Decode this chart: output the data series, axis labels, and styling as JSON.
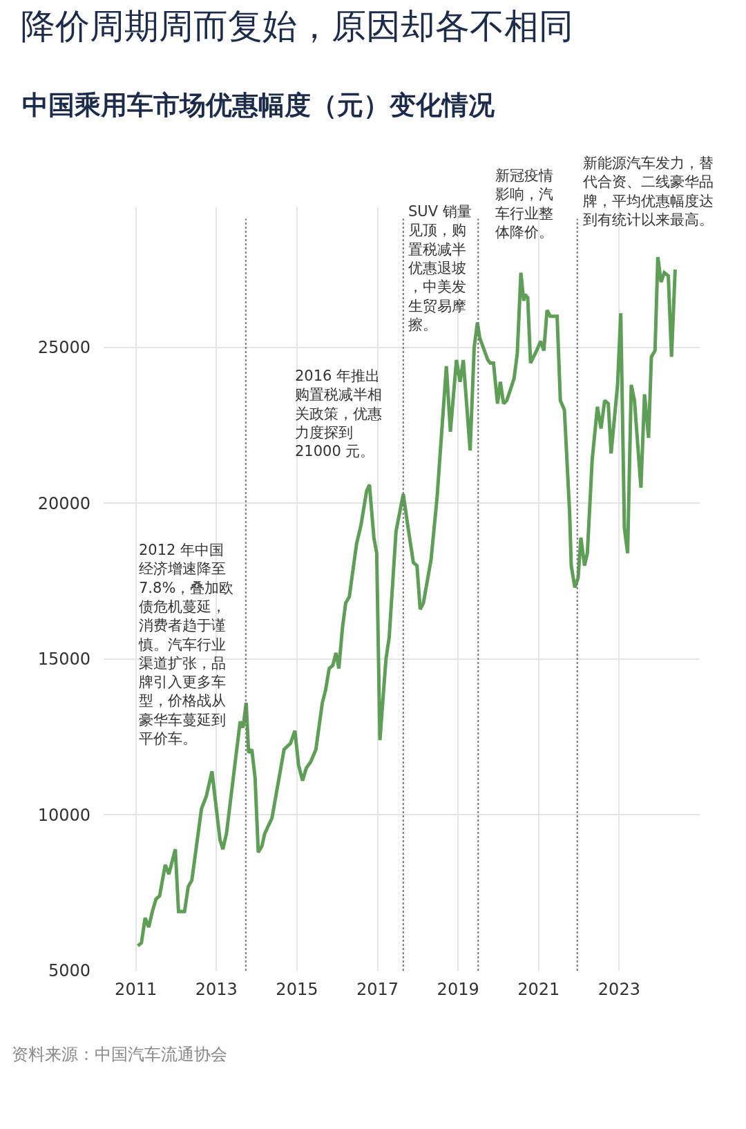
{
  "chart_data": {
    "type": "line",
    "title": "降价周期周而复始，原因却各不相同",
    "subtitle": "中国乘用车市场优惠幅度（元）变化情况",
    "x": [
      2011.05,
      2011.14,
      2011.23,
      2011.32,
      2011.41,
      2011.5,
      2011.59,
      2011.73,
      2011.82,
      2011.98,
      2012.06,
      2012.21,
      2012.3,
      2012.39,
      2012.63,
      2012.75,
      2012.89,
      2013.09,
      2013.16,
      2013.25,
      2013.59,
      2013.66,
      2013.74,
      2013.8,
      2013.88,
      2013.96,
      2014.04,
      2014.13,
      2014.2,
      2014.38,
      2014.68,
      2014.84,
      2014.95,
      2015.04,
      2015.14,
      2015.23,
      2015.34,
      2015.47,
      2015.63,
      2015.71,
      2015.8,
      2015.89,
      2015.97,
      2016.04,
      2016.13,
      2016.21,
      2016.3,
      2016.48,
      2016.59,
      2016.73,
      2016.8,
      2016.91,
      2016.98,
      2017.06,
      2017.21,
      2017.29,
      2017.46,
      2017.64,
      2017.75,
      2017.89,
      2017.98,
      2018.06,
      2018.14,
      2018.33,
      2018.48,
      2018.6,
      2018.71,
      2018.81,
      2018.96,
      2019.05,
      2019.13,
      2019.3,
      2019.4,
      2019.48,
      2019.54,
      2019.74,
      2019.8,
      2019.88,
      2019.98,
      2020.05,
      2020.13,
      2020.21,
      2020.39,
      2020.47,
      2020.56,
      2020.63,
      2020.66,
      2020.73,
      2020.8,
      2020.95,
      2021.05,
      2021.13,
      2021.21,
      2021.29,
      2021.37,
      2021.46,
      2021.54,
      2021.64,
      2021.77,
      2021.81,
      2021.9,
      2021.98,
      2022.05,
      2022.14,
      2022.21,
      2022.33,
      2022.46,
      2022.55,
      2022.64,
      2022.73,
      2022.8,
      2022.96,
      2023.04,
      2023.13,
      2023.21,
      2023.3,
      2023.38,
      2023.54,
      2023.63,
      2023.73,
      2023.8,
      2023.89,
      2023.96,
      2024.04,
      2024.12,
      2024.22,
      2024.3,
      2024.39
    ],
    "series": [
      {
        "color": "#5e9e57",
        "values": [
          5800,
          5900,
          6700,
          6400,
          6900,
          7300,
          7400,
          8400,
          8100,
          8900,
          6900,
          6900,
          7700,
          7900,
          10200,
          10600,
          11400,
          9200,
          8900,
          9400,
          13000,
          12800,
          13600,
          12000,
          12100,
          11200,
          8800,
          9000,
          9400,
          9900,
          12100,
          12300,
          12700,
          11600,
          11100,
          11500,
          11700,
          12100,
          13600,
          14000,
          14700,
          14800,
          15200,
          14700,
          16000,
          16800,
          17000,
          18700,
          19300,
          20400,
          20600,
          18900,
          18400,
          12400,
          15000,
          15700,
          19100,
          20300,
          19300,
          18100,
          18000,
          16600,
          16800,
          18200,
          20200,
          22400,
          24400,
          22300,
          24600,
          23900,
          24600,
          21700,
          25000,
          25800,
          25300,
          24600,
          24500,
          24500,
          23200,
          23900,
          23200,
          23300,
          24000,
          24800,
          27400,
          26500,
          26700,
          26600,
          24500,
          24900,
          25200,
          24900,
          26200,
          26000,
          26000,
          26000,
          23300,
          23000,
          19700,
          18000,
          17300,
          17600,
          18900,
          18000,
          18400,
          21400,
          23100,
          22400,
          23300,
          23200,
          21600,
          23800,
          26100,
          19200,
          18400,
          23800,
          23300,
          20500,
          23500,
          22100,
          24700,
          24900,
          27900,
          27100,
          27400,
          27300,
          24700,
          27500
        ]
      }
    ],
    "xlim": [
      2010.2,
      2025
    ],
    "xticks": [
      2011,
      2013,
      2015,
      2017,
      2019,
      2021,
      2023
    ],
    "ylim": [
      5000,
      29500
    ],
    "yticks": [
      5000,
      10000,
      15000,
      20000,
      25000
    ],
    "grid": true,
    "marker": "none",
    "line_style": "solid",
    "ref_lines": [
      {
        "axis": "x",
        "value": 2013.73,
        "color": "#777777",
        "line_style": "dotted"
      },
      {
        "axis": "x",
        "value": 2017.64,
        "color": "#777777",
        "line_style": "dotted"
      },
      {
        "axis": "x",
        "value": 2019.5,
        "color": "#777777",
        "line_style": "dotted"
      },
      {
        "axis": "x",
        "value": 2021.96,
        "color": "#777777",
        "line_style": "dotted"
      }
    ],
    "annotations": [
      "2012 年中国经济增速降至7.8%，叠加欧债危机蔓延，消费者趋于谨慎。汽车行业渠道扩张，品牌引入更多车型，价格战从豪华车蔓延到平价车。",
      "2016 年推出购置税减半相关政策，优惠力度探到21000 元。",
      "SUV 销量见顶，购置税减半优惠退坡，中美发生贸易摩擦。",
      "新冠疫情影响，汽车行业整体降价。",
      "新能源汽车发力，替代合资、二线豪华品牌，平均优惠幅度达到有统计以来最高。",
      "资料来源：中国汽车流通协会"
    ]
  }
}
